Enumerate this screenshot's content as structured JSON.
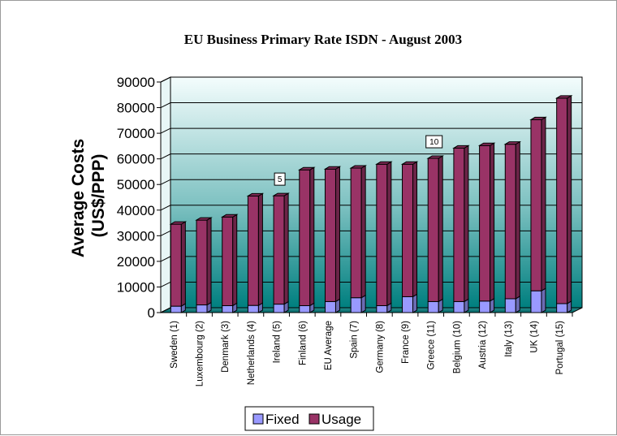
{
  "chart_data": {
    "type": "bar",
    "stacked": true,
    "three_d": true,
    "title": "EU Business Primary Rate ISDN - August 2003",
    "ylabel": "Average Costs\n(US$/PPP)",
    "xlabel": "",
    "ylim": [
      0,
      90000
    ],
    "yticks": [
      0,
      10000,
      20000,
      30000,
      40000,
      50000,
      60000,
      70000,
      80000,
      90000
    ],
    "grid": true,
    "legend_position": "bottom",
    "categories": [
      "Sweden (1)",
      "Luxembourg (2)",
      "Denmark (3)",
      "Netherlands (4)",
      "Ireland (5)",
      "Finland (6)",
      "EU Average",
      "Spain (7)",
      "Germany (8)",
      "France (9)",
      "Greece (11)",
      "Belgium (10)",
      "Austria (12)",
      "Italy (13)",
      "UK (14)",
      "Portugal (15)"
    ],
    "series": [
      {
        "name": "Fixed",
        "color": "#9999ff",
        "values": [
          2500,
          3000,
          2700,
          2800,
          3300,
          2700,
          4300,
          5800,
          2700,
          6200,
          4300,
          4300,
          4500,
          5400,
          8500,
          3500
        ]
      },
      {
        "name": "Usage",
        "color": "#993366",
        "values": [
          32000,
          33100,
          34600,
          42700,
          42300,
          53000,
          51700,
          50600,
          55200,
          51700,
          55900,
          59900,
          60700,
          60300,
          66800,
          80200
        ]
      }
    ],
    "annotations": [
      {
        "category": "Ireland (5)",
        "text": "5"
      },
      {
        "category": "Greece (11)",
        "text": "10"
      }
    ]
  },
  "legend": {
    "fixed_label": "Fixed",
    "usage_label": "Usage"
  }
}
